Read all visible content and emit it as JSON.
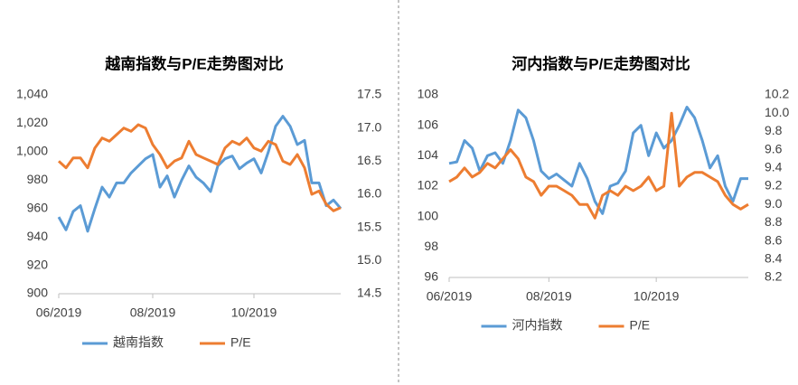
{
  "chart_data": [
    {
      "type": "line",
      "title": "越南指数与P/E走势图对比",
      "legend": "bottom",
      "categories": [
        "06/2019",
        null,
        null,
        null,
        null,
        null,
        null,
        null,
        null,
        null,
        null,
        null,
        null,
        "08/2019",
        null,
        null,
        null,
        null,
        null,
        null,
        null,
        null,
        null,
        null,
        null,
        null,
        null,
        "10/2019",
        null,
        null,
        null,
        null,
        null,
        null,
        null,
        null,
        null,
        null,
        null,
        null
      ],
      "series": [
        {
          "name": "越南指数",
          "color": "#5b9bd5",
          "axis": "y",
          "values": [
            954,
            945,
            958,
            962,
            944,
            960,
            975,
            968,
            978,
            978,
            985,
            990,
            995,
            998,
            975,
            983,
            968,
            980,
            990,
            982,
            978,
            972,
            990,
            995,
            997,
            988,
            992,
            995,
            985,
            1000,
            1018,
            1025,
            1018,
            1005,
            1008,
            978,
            978,
            962,
            966,
            960
          ]
        },
        {
          "name": "P/E",
          "color": "#ed7d31",
          "axis": "y2",
          "values": [
            16.5,
            16.4,
            16.55,
            16.55,
            16.4,
            16.7,
            16.85,
            16.8,
            16.9,
            17.0,
            16.95,
            17.05,
            17.0,
            16.75,
            16.6,
            16.4,
            16.5,
            16.55,
            16.8,
            16.6,
            16.55,
            16.5,
            16.45,
            16.7,
            16.8,
            16.75,
            16.85,
            16.7,
            16.65,
            16.8,
            16.75,
            16.5,
            16.45,
            16.6,
            16.4,
            16.0,
            16.05,
            15.85,
            15.75,
            15.8
          ]
        }
      ],
      "ylim": [
        900,
        1040
      ],
      "yticks": [
        900,
        920,
        940,
        960,
        980,
        {
          "value": 1000,
          "label": "1,000"
        },
        {
          "value": 1020,
          "label": "1,020"
        },
        {
          "value": 1040,
          "label": "1,040"
        }
      ],
      "y2lim": [
        14.5,
        17.5
      ],
      "y2ticks": [
        14.5,
        {
          "value": 15,
          "label": "15.0"
        },
        15.5,
        {
          "value": 16,
          "label": "16.0"
        },
        16.5,
        {
          "value": 17,
          "label": "17.0"
        },
        17.5
      ]
    },
    {
      "type": "line",
      "title": "河内指数与P/E走势图对比",
      "legend": "bottom",
      "categories": [
        "06/2019",
        null,
        null,
        null,
        null,
        null,
        null,
        null,
        null,
        null,
        null,
        null,
        null,
        "08/2019",
        null,
        null,
        null,
        null,
        null,
        null,
        null,
        null,
        null,
        null,
        null,
        null,
        null,
        "10/2019",
        null,
        null,
        null,
        null,
        null,
        null,
        null,
        null,
        null,
        null,
        null,
        null
      ],
      "series": [
        {
          "name": "河内指数",
          "color": "#5b9bd5",
          "axis": "y",
          "values": [
            103.5,
            103.6,
            105,
            104.5,
            103,
            104,
            104.2,
            103.5,
            105,
            107,
            106.5,
            105,
            103,
            102.5,
            102.8,
            102.4,
            102,
            103.5,
            102.5,
            101,
            100.2,
            102,
            102.2,
            103,
            105.5,
            106,
            104,
            105.5,
            104.5,
            105,
            106,
            107.2,
            106.5,
            105,
            103.2,
            104,
            102,
            101,
            102.5,
            102.5
          ]
        },
        {
          "name": "P/E",
          "color": "#ed7d31",
          "axis": "y2",
          "values": [
            9.25,
            9.3,
            9.4,
            9.3,
            9.35,
            9.45,
            9.4,
            9.5,
            9.6,
            9.5,
            9.3,
            9.25,
            9.1,
            9.2,
            9.2,
            9.15,
            9.1,
            9.0,
            9.0,
            8.85,
            9.1,
            9.15,
            9.1,
            9.2,
            9.15,
            9.2,
            9.3,
            9.15,
            9.2,
            10.0,
            9.2,
            9.3,
            9.35,
            9.35,
            9.3,
            9.25,
            9.1,
            9.0,
            8.95,
            9.0
          ]
        }
      ],
      "ylim": [
        96,
        108
      ],
      "yticks": [
        96,
        98,
        100,
        102,
        104,
        106,
        108
      ],
      "y2lim": [
        8.2,
        10.2
      ],
      "y2ticks": [
        8.2,
        8.4,
        8.6,
        8.8,
        {
          "value": 9,
          "label": "9.0"
        },
        9.2,
        9.4,
        9.6,
        9.8,
        {
          "value": 10,
          "label": "10.0"
        },
        10.2
      ]
    }
  ]
}
